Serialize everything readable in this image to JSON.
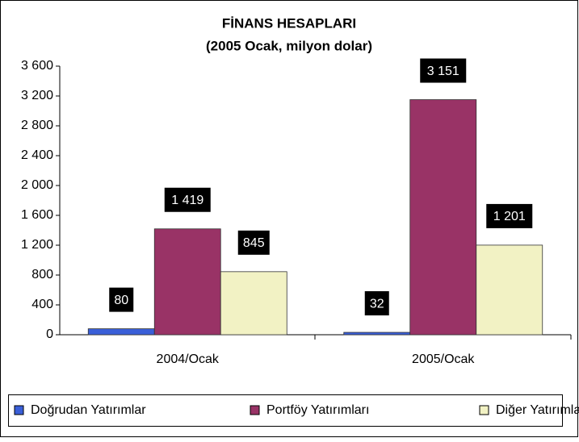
{
  "chart_data": {
    "type": "bar",
    "title": "FİNANS HESAPLARI",
    "subtitle": "(2005 Ocak,  milyon dolar)",
    "categories": [
      "2004/Ocak",
      "2005/Ocak"
    ],
    "series": [
      {
        "name": "Doğrudan Yatırımlar",
        "color": "#3a5fd8",
        "values": [
          80,
          32
        ],
        "value_labels": [
          "80",
          "32"
        ]
      },
      {
        "name": "Portföy Yatırımları",
        "color": "#993366",
        "values": [
          1419,
          3151
        ],
        "value_labels": [
          "1 419",
          "3 151"
        ]
      },
      {
        "name": "Diğer Yatırımlar",
        "color": "#f2f2c4",
        "values": [
          845,
          1201
        ],
        "value_labels": [
          "845",
          "1 201"
        ]
      }
    ],
    "ylim": [
      0,
      3600
    ],
    "yticks": [
      0,
      400,
      800,
      {
        "value": 1200,
        "label": "1 200"
      },
      {
        "value": 1600,
        "label": "1 600"
      },
      {
        "value": 2000,
        "label": "2 000"
      },
      {
        "value": 2400,
        "label": "2 400"
      },
      {
        "value": 2800,
        "label": "2 800"
      },
      {
        "value": 3200,
        "label": "3 200"
      },
      {
        "value": 3600,
        "label": "3 600"
      }
    ],
    "legend": "bottom"
  }
}
